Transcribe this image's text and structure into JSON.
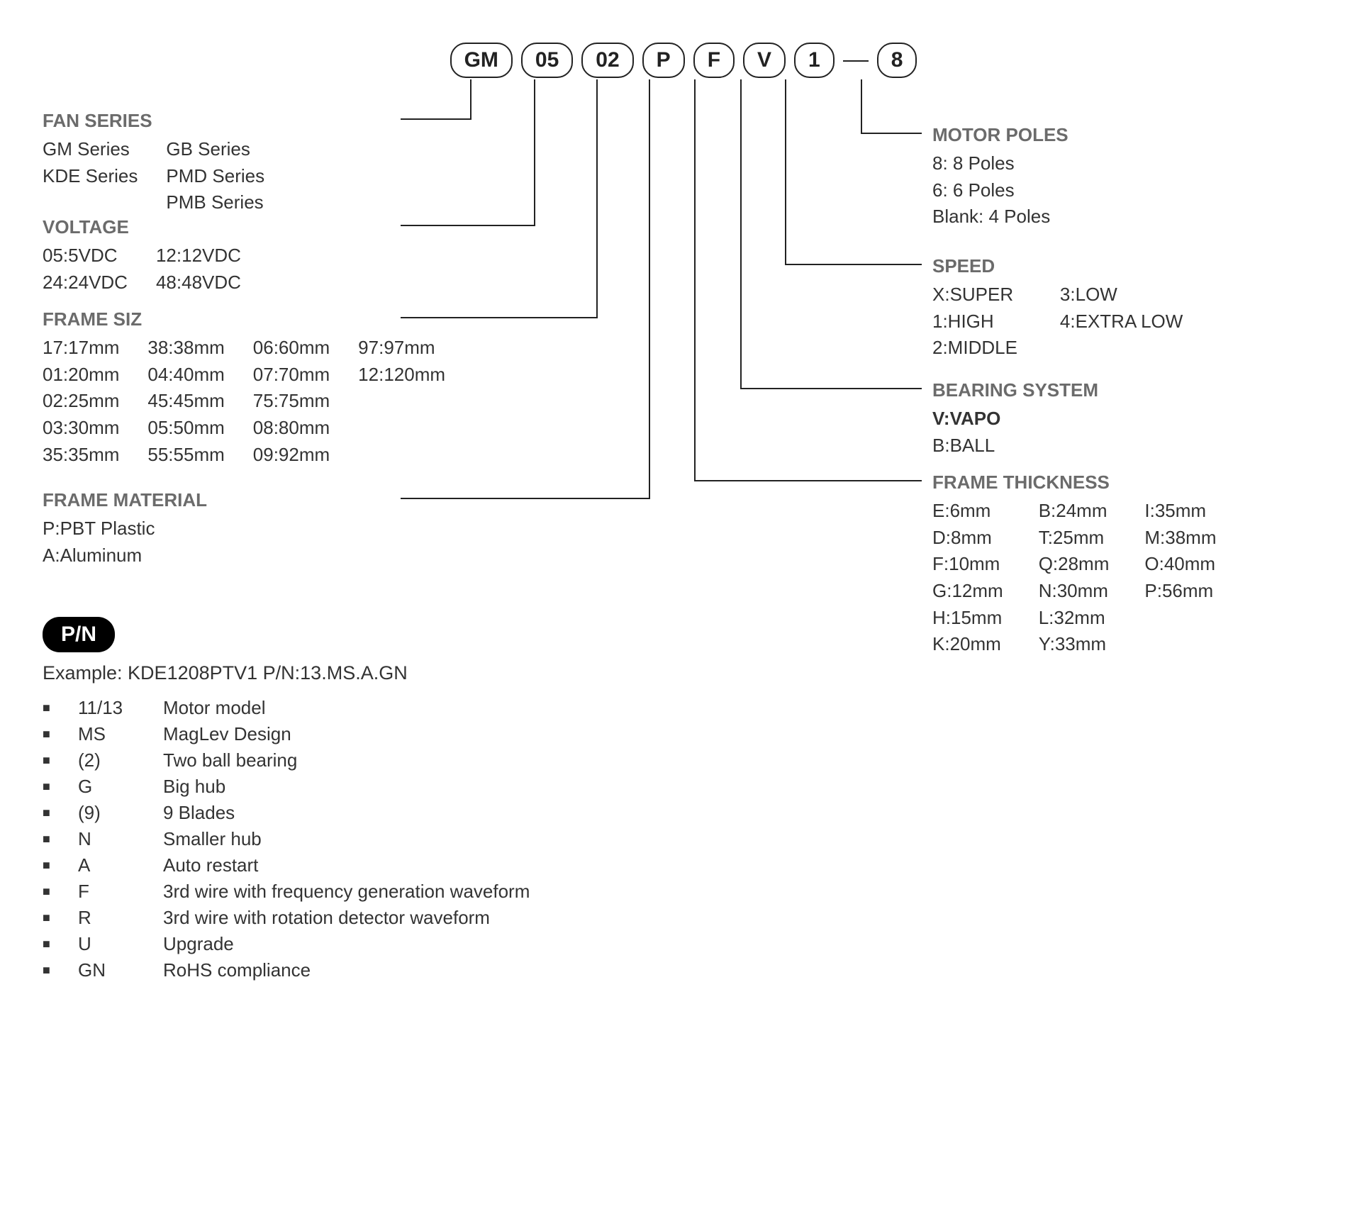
{
  "code_parts": [
    "GM",
    "05",
    "02",
    "P",
    "F",
    "V",
    "1",
    "8"
  ],
  "left": {
    "fan_series": {
      "title": "FAN SERIES",
      "col1": [
        "GM Series",
        "KDE Series"
      ],
      "col2": [
        "GB Series",
        "PMD Series",
        "PMB Series"
      ]
    },
    "voltage": {
      "title": "VOLTAGE",
      "col1": [
        "05:5VDC",
        "24:24VDC"
      ],
      "col2": [
        "12:12VDC",
        "48:48VDC"
      ]
    },
    "frame_size": {
      "title": "FRAME SIZ",
      "col1": [
        "17:17mm",
        "01:20mm",
        "02:25mm",
        "03:30mm",
        "35:35mm"
      ],
      "col2": [
        "38:38mm",
        "04:40mm",
        "45:45mm",
        "05:50mm",
        "55:55mm"
      ],
      "col3": [
        "06:60mm",
        "07:70mm",
        "75:75mm",
        "08:80mm",
        "09:92mm"
      ],
      "col4": [
        "97:97mm",
        "12:120mm"
      ]
    },
    "frame_material": {
      "title": "FRAME MATERIAL",
      "items": [
        "P:PBT Plastic",
        "A:Aluminum"
      ]
    }
  },
  "right": {
    "motor_poles": {
      "title": "MOTOR POLES",
      "items": [
        "8: 8 Poles",
        "6: 6 Poles",
        "Blank: 4 Poles"
      ]
    },
    "speed": {
      "title": "SPEED",
      "col1": [
        "X:SUPER",
        "1:HIGH",
        "2:MIDDLE"
      ],
      "col2": [
        "3:LOW",
        "4:EXTRA  LOW"
      ]
    },
    "bearing": {
      "title": "BEARING SYSTEM",
      "items_bold": [
        "V:VAPO"
      ],
      "items": [
        "B:BALL"
      ]
    },
    "frame_thickness": {
      "title": "FRAME THICKNESS",
      "col1": [
        "E:6mm",
        "D:8mm",
        "F:10mm",
        "G:12mm",
        "H:15mm",
        "K:20mm"
      ],
      "col2": [
        "B:24mm",
        "T:25mm",
        "Q:28mm",
        "N:30mm",
        "L:32mm",
        "Y:33mm"
      ],
      "col3": [
        "I:35mm",
        "M:38mm",
        "O:40mm",
        "P:56mm"
      ]
    }
  },
  "pn": {
    "badge": "P/N",
    "example": "Example: KDE1208PTV1  P/N:13.MS.A.GN",
    "rows": [
      {
        "code": "11/13",
        "desc": "Motor model"
      },
      {
        "code": "MS",
        "desc": "MagLev Design"
      },
      {
        "code": "(2)",
        "desc": "Two ball bearing"
      },
      {
        "code": "G",
        "desc": "Big hub"
      },
      {
        "code": "(9)",
        "desc": "9 Blades"
      },
      {
        "code": "N",
        "desc": "Smaller hub"
      },
      {
        "code": "A",
        "desc": "Auto restart"
      },
      {
        "code": "F",
        "desc": "3rd wire with frequency generation waveform"
      },
      {
        "code": "R",
        "desc": "3rd wire with rotation detector waveform"
      },
      {
        "code": "U",
        "desc": "Upgrade"
      },
      {
        "code": "GN",
        "desc": "RoHS compliance"
      }
    ]
  },
  "style": {
    "line_color": "#222",
    "line_width": 2,
    "title_color": "#6b6b6b",
    "text_color": "#333",
    "bg": "#ffffff"
  }
}
